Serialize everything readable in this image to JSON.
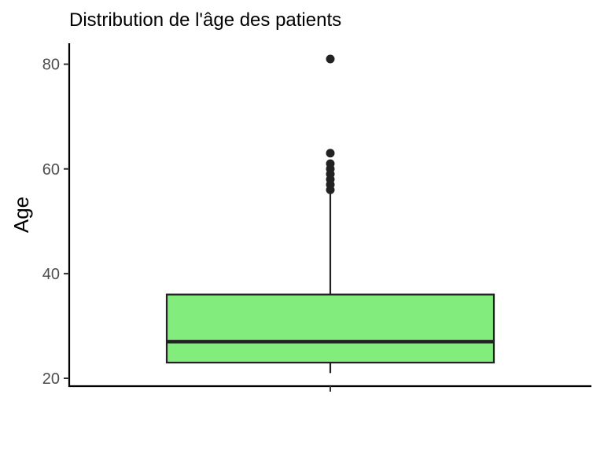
{
  "chart_data": {
    "type": "boxplot",
    "title": "Distribution de l'âge des patients",
    "xlabel": "",
    "ylabel": "Age",
    "ylim": [
      18.5,
      84
    ],
    "yticks": [
      20,
      40,
      60,
      80
    ],
    "grid": false,
    "legend": "none",
    "box": {
      "q1": 23,
      "median": 27,
      "q3": 36,
      "whisker_low": 21,
      "whisker_high": 55.5,
      "outliers": [
        56,
        57,
        58,
        59,
        60,
        61,
        63,
        81
      ]
    },
    "colors": {
      "fill": "#82ec7d",
      "stroke": "#222222",
      "axis": "#000000"
    }
  }
}
